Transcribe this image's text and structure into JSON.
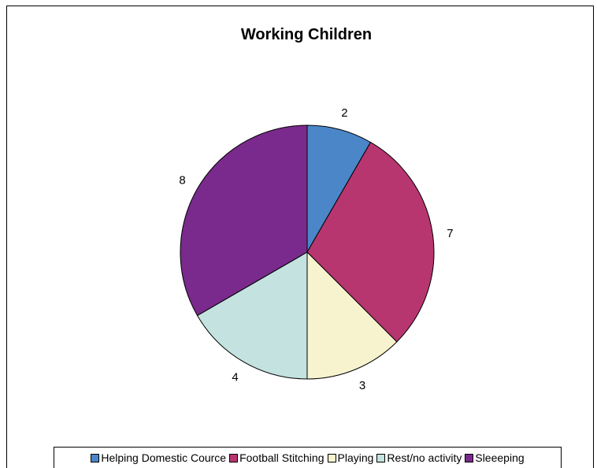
{
  "chart_data": {
    "type": "pie",
    "title": "Working Children",
    "categories": [
      "Helping Domestic Cource",
      "Football Stitching",
      "Playing",
      "Rest/no activity",
      "Sleeeping"
    ],
    "values": [
      2,
      7,
      3,
      4,
      8
    ],
    "data_labels": [
      "2",
      "7",
      "3",
      "4",
      "8"
    ],
    "colors": [
      "#4a86c8",
      "#b83670",
      "#f7f3cf",
      "#c3e2e0",
      "#7a2a8c"
    ],
    "start_angle_deg": 0,
    "direction": "clockwise",
    "legend_position": "bottom"
  }
}
